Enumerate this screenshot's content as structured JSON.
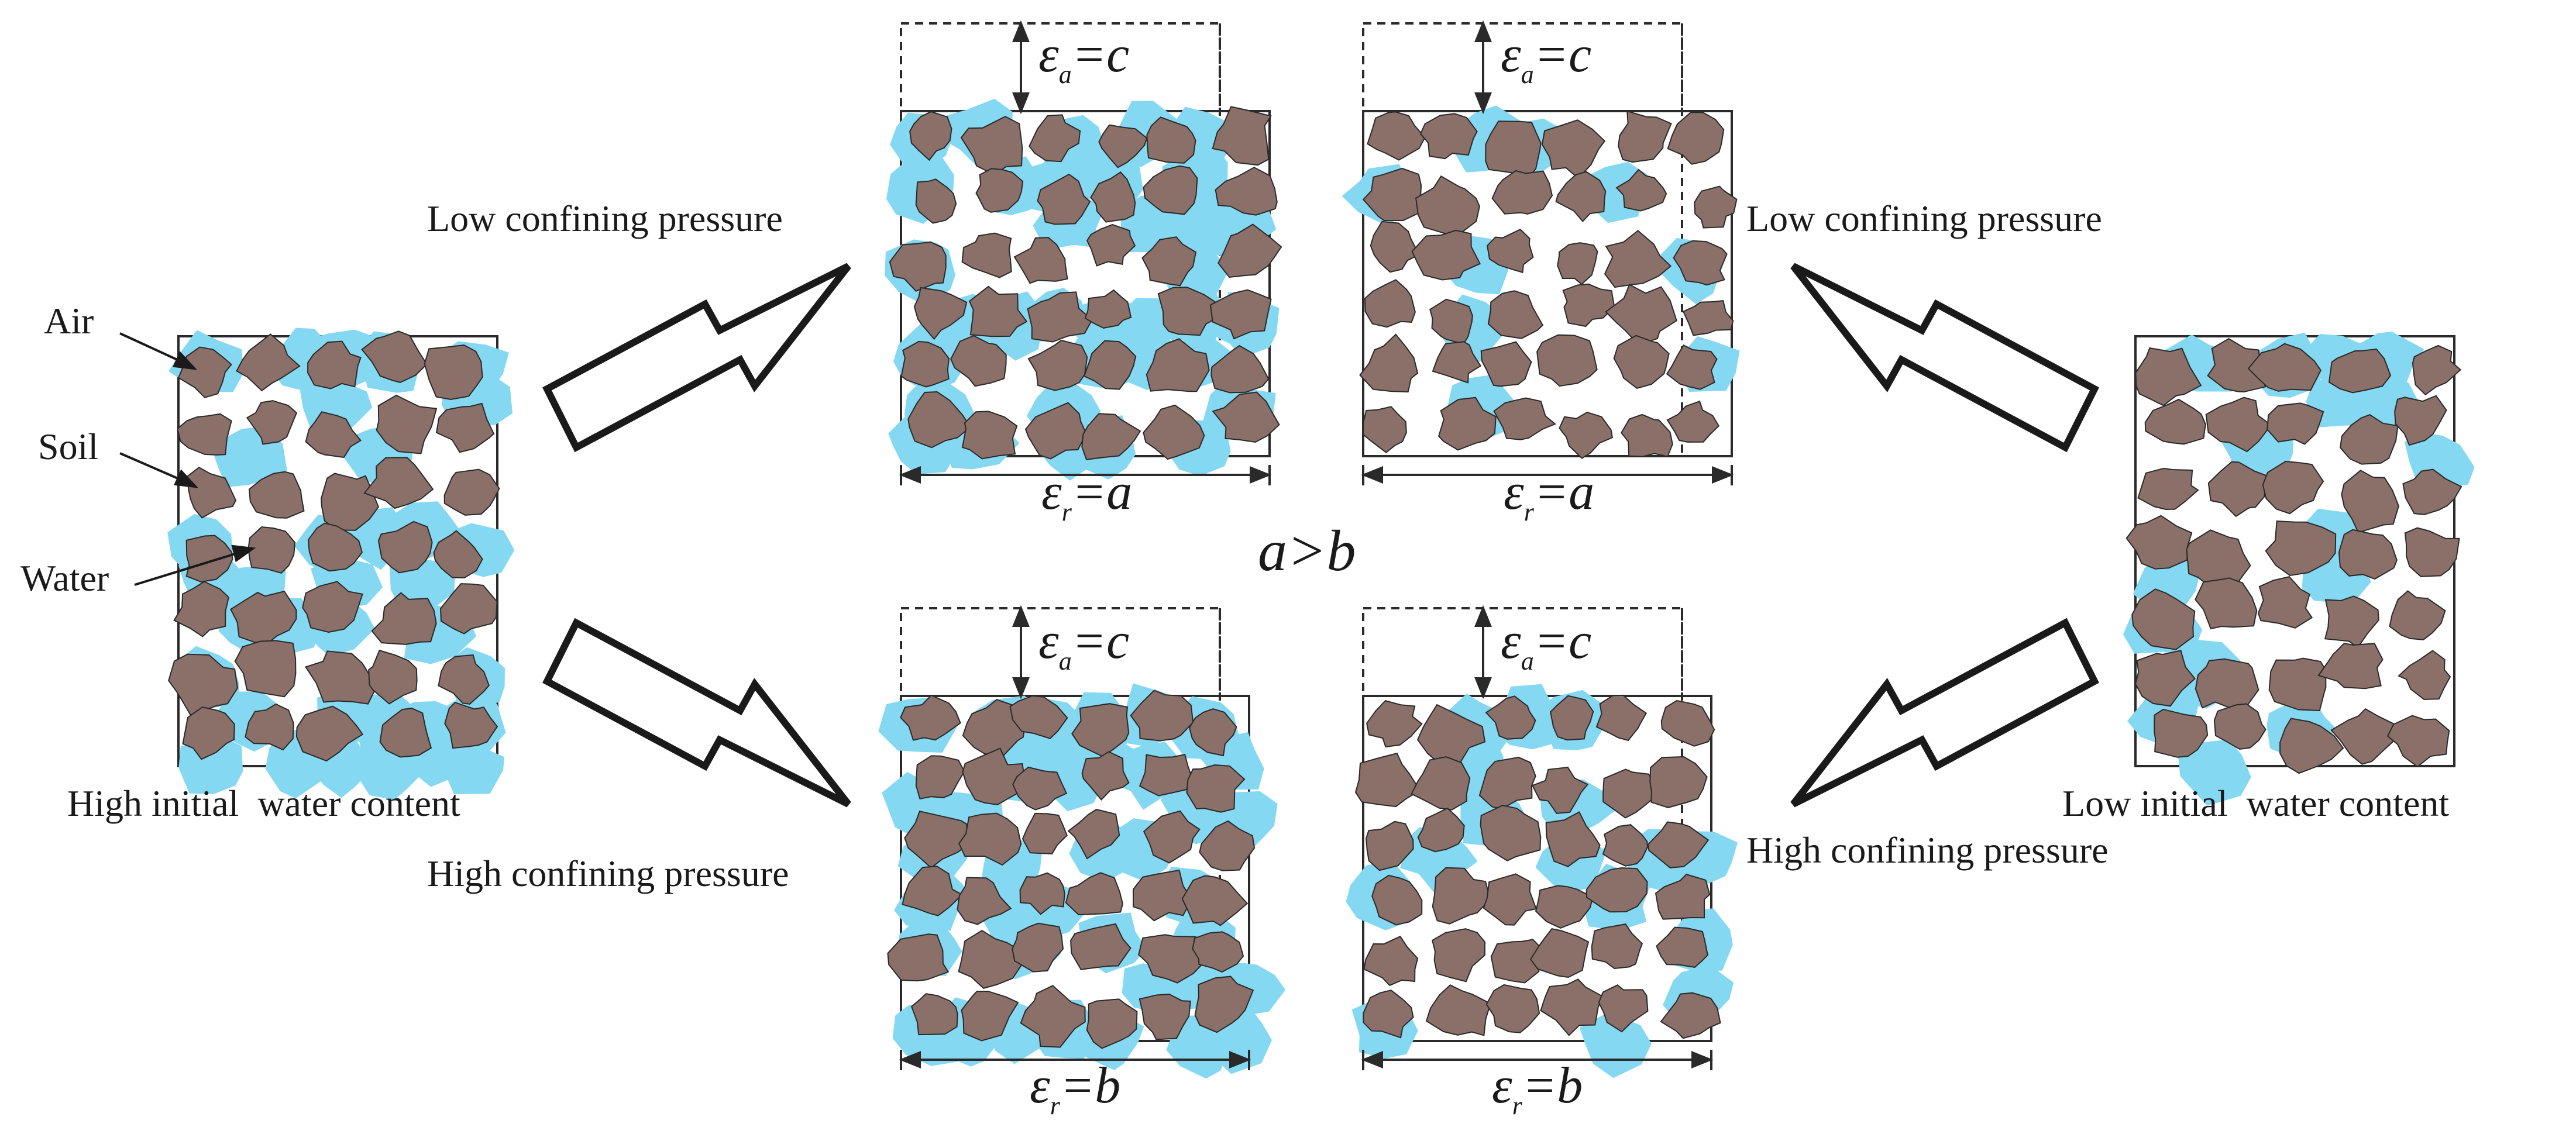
{
  "legend": {
    "air": "Air",
    "soil": "Soil",
    "water": "Water"
  },
  "samples": {
    "left": "High initial  water content",
    "right": "Low initial  water content"
  },
  "pressures": {
    "low_left": "Low confining pressure",
    "low_right": "Low confining pressure",
    "high_left": "High confining pressure",
    "high_right": "High confining pressure"
  },
  "strain": {
    "axial_symbol": "ε",
    "axial_sub": "a",
    "axial_rhs": "=c",
    "radial_symbol": "ε",
    "radial_sub": "r",
    "radial_rhs_low": "=a",
    "radial_rhs_high": "=b"
  },
  "comparison": "a>b",
  "colors": {
    "soil": "#8a7068",
    "water": "#84d8f2",
    "outline": "#2a2a2a"
  }
}
